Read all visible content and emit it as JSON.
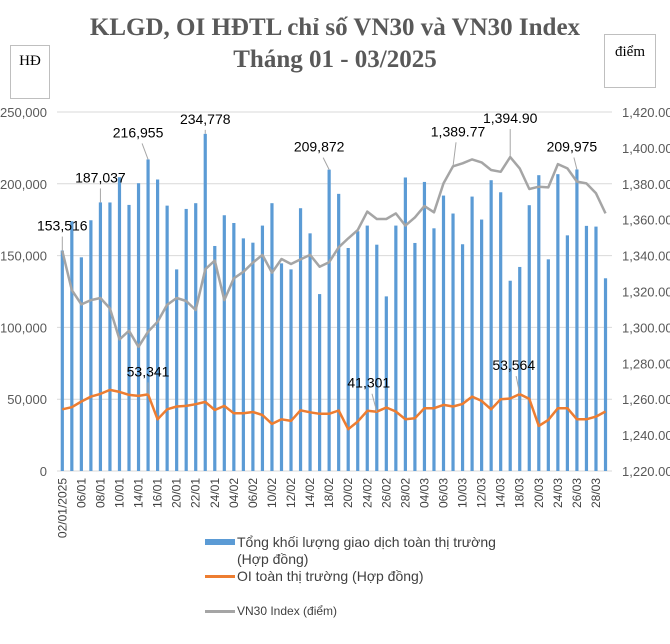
{
  "title_line1": "KLGD, OI HĐTL chỉ số VN30 và VN30 Index",
  "title_line2": "Tháng 01 - 03/2025",
  "left_unit": "HĐ",
  "right_unit": "điểm",
  "chart_data": {
    "type": "bar+line",
    "title": "KLGD, OI HĐTL chỉ số VN30 và VN30 Index Tháng 01 - 03/2025",
    "ylabel_left": "HĐ",
    "ylabel_right": "điểm",
    "ylim_left": [
      0,
      250000
    ],
    "ylim_right": [
      1220,
      1420
    ],
    "left_ticks": [
      "0",
      "50,000",
      "100,000",
      "150,000",
      "200,000",
      "250,000"
    ],
    "right_ticks": [
      "1,220.00",
      "1,240.00",
      "1,260.00",
      "1,280.00",
      "1,300.00",
      "1,320.00",
      "1,340.00",
      "1,360.00",
      "1,380.00",
      "1,400.00",
      "1,420.00"
    ],
    "x_tick_labels": [
      "02/01/2025",
      "06/01",
      "08/01",
      "10/01",
      "14/01",
      "16/01",
      "20/01",
      "22/01",
      "24/01",
      "04/02",
      "06/02",
      "10/02",
      "12/02",
      "14/02",
      "18/02",
      "20/02",
      "24/02",
      "26/02",
      "28/02",
      "04/03",
      "06/03",
      "10/03",
      "12/03",
      "14/03",
      "18/03",
      "20/03",
      "24/03",
      "26/03",
      "28/03"
    ],
    "grid": true,
    "legend_position": "bottom",
    "series": [
      {
        "name": "Tổng khối lượng giao dịch toàn thị trường (Hợp đồng)",
        "type": "bar",
        "axis": "left",
        "color": "#5b9bd5",
        "values": [
          153516,
          173900,
          148800,
          174600,
          187037,
          187000,
          204600,
          185300,
          200400,
          216955,
          203000,
          184800,
          140400,
          182500,
          186500,
          234778,
          156700,
          178100,
          172700,
          162000,
          159000,
          170900,
          186500,
          144600,
          140400,
          183000,
          165500,
          123200,
          209872,
          193000,
          155300,
          167000,
          170900,
          157600,
          121600,
          170900,
          204400,
          158800,
          201300,
          169000,
          191800,
          179300,
          157900,
          191100,
          175100,
          202500,
          194100,
          132500,
          142100,
          185100,
          206000,
          147400,
          206700,
          164100,
          209975,
          170700,
          170200,
          134200
        ]
      },
      {
        "name": "OI toàn thị trường (Hợp đồng)",
        "type": "line",
        "axis": "left",
        "color": "#ed7d31",
        "values": [
          43000,
          44400,
          48400,
          51800,
          53700,
          56500,
          55100,
          53000,
          52300,
          53341,
          36000,
          43000,
          44900,
          45300,
          46500,
          48100,
          42500,
          45300,
          40200,
          40200,
          41100,
          39000,
          32800,
          36000,
          34900,
          42300,
          40900,
          39800,
          39800,
          42100,
          29100,
          34400,
          41900,
          41301,
          44200,
          41400,
          36000,
          36700,
          43700,
          43700,
          46000,
          44900,
          46700,
          51800,
          48800,
          43000,
          50000,
          50500,
          53564,
          50200,
          31400,
          35600,
          43700,
          43700,
          36000,
          36000,
          37900,
          41400
        ]
      },
      {
        "name": "VN30 Index (điểm)",
        "type": "line",
        "axis": "right",
        "color": "#a5a5a5",
        "values": [
          1342.6,
          1320.8,
          1312.8,
          1315.2,
          1316.4,
          1310.6,
          1293.3,
          1298.1,
          1289.2,
          1297.6,
          1303.2,
          1312.6,
          1316.4,
          1314.7,
          1309.7,
          1332.4,
          1337.2,
          1315.2,
          1327.3,
          1331.0,
          1336.1,
          1340.4,
          1330.5,
          1338.1,
          1335.3,
          1337.9,
          1340.4,
          1333.8,
          1336.3,
          1344.6,
          1349.6,
          1354.2,
          1364.5,
          1360.4,
          1360.4,
          1363.5,
          1356.7,
          1361.3,
          1367.6,
          1364.1,
          1380.2,
          1389.77,
          1391.4,
          1393.6,
          1391.9,
          1387.7,
          1386.7,
          1394.9,
          1388.6,
          1377.1,
          1378.4,
          1378.0,
          1391.0,
          1388.6,
          1381.2,
          1380.2,
          1374.7,
          1363.5
        ]
      }
    ],
    "data_labels": [
      {
        "series": 0,
        "index": 0,
        "text": "153,516"
      },
      {
        "series": 0,
        "index": 4,
        "text": "187,037"
      },
      {
        "series": 0,
        "index": 9,
        "text": "216,955"
      },
      {
        "series": 0,
        "index": 15,
        "text": "234,778"
      },
      {
        "series": 0,
        "index": 28,
        "text": "209,872"
      },
      {
        "series": 0,
        "index": 54,
        "text": "209,975"
      },
      {
        "series": 1,
        "index": 9,
        "text": "53,341"
      },
      {
        "series": 1,
        "index": 33,
        "text": "41,301"
      },
      {
        "series": 1,
        "index": 48,
        "text": "53,564"
      },
      {
        "series": 2,
        "index": 41,
        "text": "1,389.77"
      },
      {
        "series": 2,
        "index": 47,
        "text": "1,394.90"
      }
    ]
  }
}
